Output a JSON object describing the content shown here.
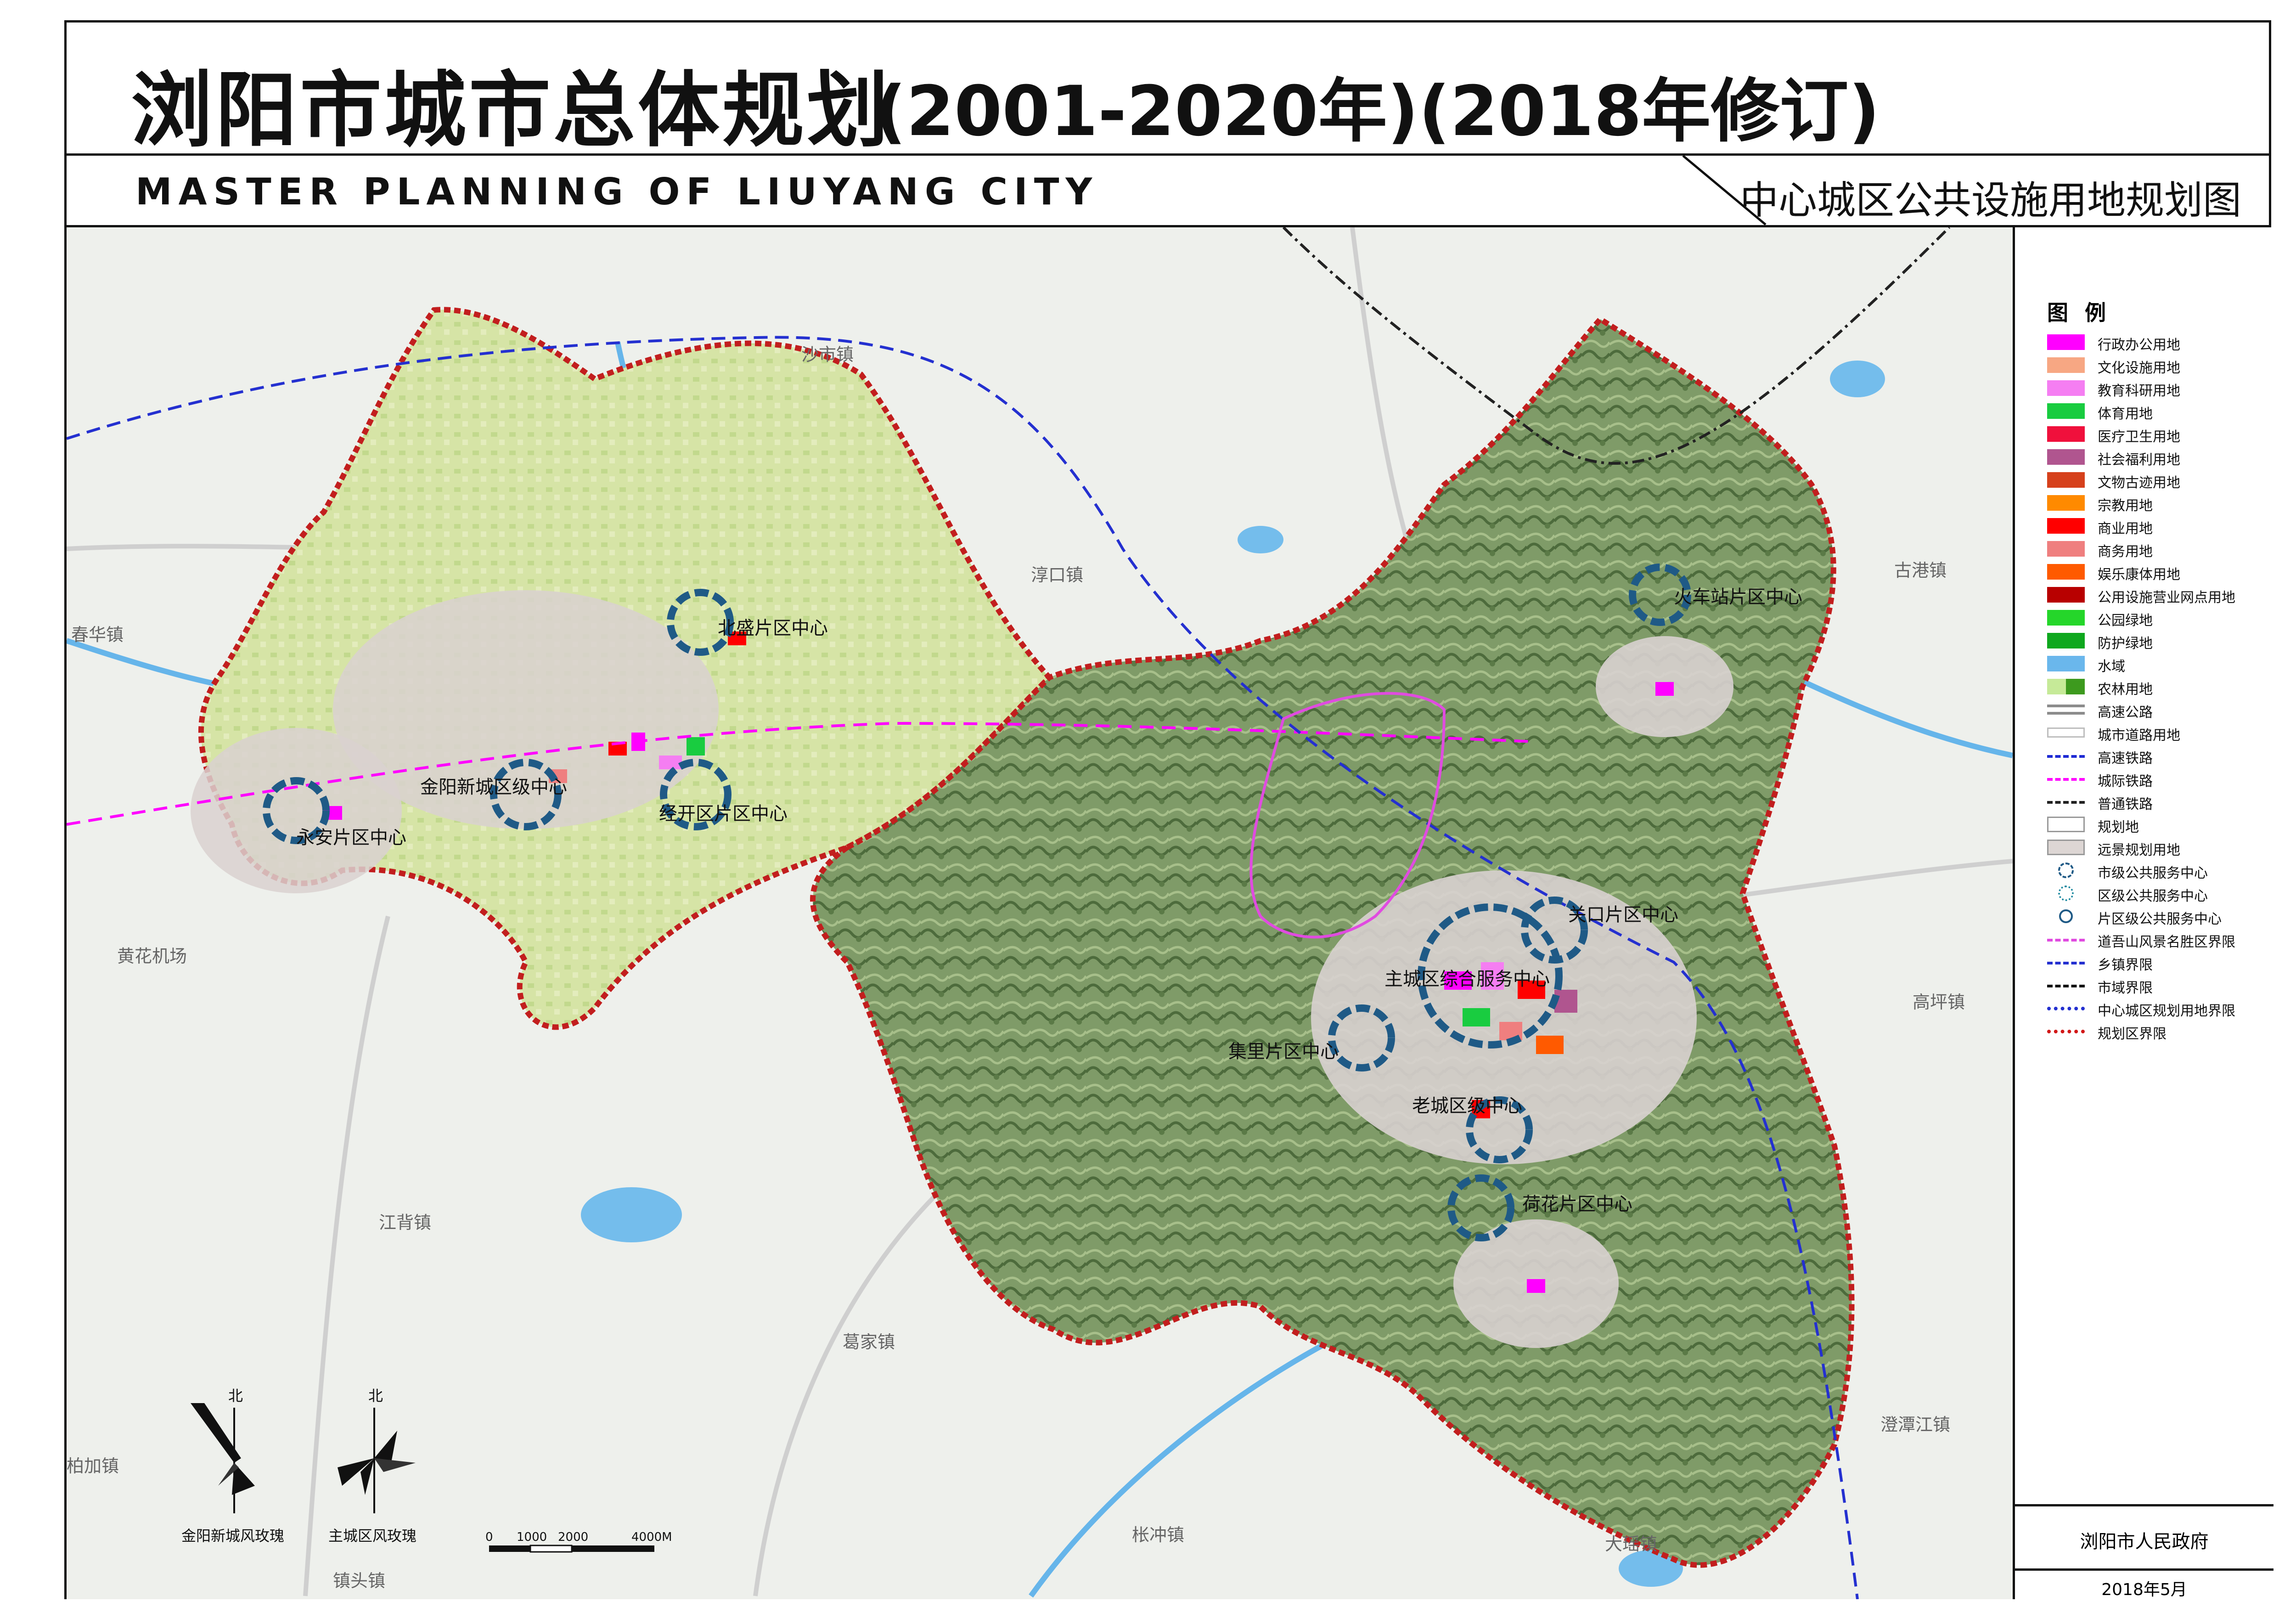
{
  "header": {
    "title_cn": "浏阳市城市总体规划",
    "title_years": "(2001-2020年)(2018年修订)",
    "title_en": "MASTER PLANNING OF LIUYANG CITY",
    "map_subtitle": "中心城区公共设施用地规划图"
  },
  "legend": {
    "title": "图 例",
    "items": [
      {
        "label": "行政办公用地",
        "color": "#ff00ff",
        "style": "fill"
      },
      {
        "label": "文化设施用地",
        "color": "#f7a783",
        "style": "fill"
      },
      {
        "label": "教育科研用地",
        "color": "#f57ef2",
        "style": "fill"
      },
      {
        "label": "体育用地",
        "color": "#19cc40",
        "style": "fill"
      },
      {
        "label": "医疗卫生用地",
        "color": "#f0103c",
        "style": "fill"
      },
      {
        "label": "社会福利用地",
        "color": "#b0558f",
        "style": "fill"
      },
      {
        "label": "文物古迹用地",
        "color": "#d6411c",
        "style": "fill"
      },
      {
        "label": "宗教用地",
        "color": "#ff8a00",
        "style": "fill"
      },
      {
        "label": "商业用地",
        "color": "#ff0000",
        "style": "fill"
      },
      {
        "label": "商务用地",
        "color": "#ef7f7f",
        "style": "fill"
      },
      {
        "label": "娱乐康体用地",
        "color": "#ff5a00",
        "style": "fill"
      },
      {
        "label": "公用设施营业网点用地",
        "color": "#b80000",
        "style": "fill"
      },
      {
        "label": "公园绿地",
        "color": "#25d62a",
        "style": "fill"
      },
      {
        "label": "防护绿地",
        "color": "#0fa81e",
        "style": "fill"
      },
      {
        "label": "水域",
        "color": "#6ab7ec",
        "style": "fill"
      },
      {
        "label": "农林用地",
        "color": "#c6ea98",
        "style": "split"
      },
      {
        "label": "高速公路",
        "color": "#8c8c8c",
        "style": "double"
      },
      {
        "label": "城市道路用地",
        "color": "#bdbdbd",
        "style": "road"
      },
      {
        "label": "高速铁路",
        "color": "#1f2bd4",
        "style": "dash"
      },
      {
        "label": "城际铁路",
        "color": "#ff00ff",
        "style": "dash"
      },
      {
        "label": "普通铁路",
        "color": "#222222",
        "style": "dashdot"
      },
      {
        "label": "规划地",
        "color": "#ffffff",
        "style": "fill"
      },
      {
        "label": "远景规划用地",
        "color": "#ddd6d4",
        "style": "fill"
      },
      {
        "label": "市级公共服务中心",
        "color": "#1f5a86",
        "style": "ring-dash"
      },
      {
        "label": "区级公共服务中心",
        "color": "#1f8aa0",
        "style": "ring-dot"
      },
      {
        "label": "片区级公共服务中心",
        "color": "#1f5a86",
        "style": "ring"
      },
      {
        "label": "道吾山风景名胜区界限",
        "color": "#e04be0",
        "style": "dash"
      },
      {
        "label": "乡镇界限",
        "color": "#2430d0",
        "style": "dashdot"
      },
      {
        "label": "市域界限",
        "color": "#111111",
        "style": "dashdot"
      },
      {
        "label": "中心城区规划用地界限",
        "color": "#2430d0",
        "style": "dotdash-bold"
      },
      {
        "label": "规划区界限",
        "color": "#d21818",
        "style": "dotdash-red"
      }
    ]
  },
  "footer": {
    "issuer": "浏阳市人民政府",
    "date": "2018年5月"
  },
  "map": {
    "centers": [
      {
        "label": "北盛片区中心"
      },
      {
        "label": "金阳新城区级中心"
      },
      {
        "label": "经开区片区中心"
      },
      {
        "label": "永安片区中心"
      },
      {
        "label": "火车站片区中心"
      },
      {
        "label": "关口片区中心"
      },
      {
        "label": "主城区综合服务中心"
      },
      {
        "label": "集里片区中心"
      },
      {
        "label": "老城区级中心"
      },
      {
        "label": "荷花片区中心"
      }
    ],
    "towns": [
      {
        "label": "沙市镇"
      },
      {
        "label": "淳口镇"
      },
      {
        "label": "古港镇"
      },
      {
        "label": "春华镇"
      },
      {
        "label": "黄花机场"
      },
      {
        "label": "高坪镇"
      },
      {
        "label": "江背镇"
      },
      {
        "label": "葛家镇"
      },
      {
        "label": "澄潭江镇"
      },
      {
        "label": "柏加镇"
      },
      {
        "label": "枨冲镇"
      },
      {
        "label": "大瑶镇"
      },
      {
        "label": "镇头镇"
      }
    ],
    "north_label": "北",
    "wind_rose_1": "金阳新城风玫瑰",
    "wind_rose_2": "主城区风玫瑰",
    "scale_labels": [
      "0",
      "1000",
      "2000",
      "4000M"
    ]
  }
}
